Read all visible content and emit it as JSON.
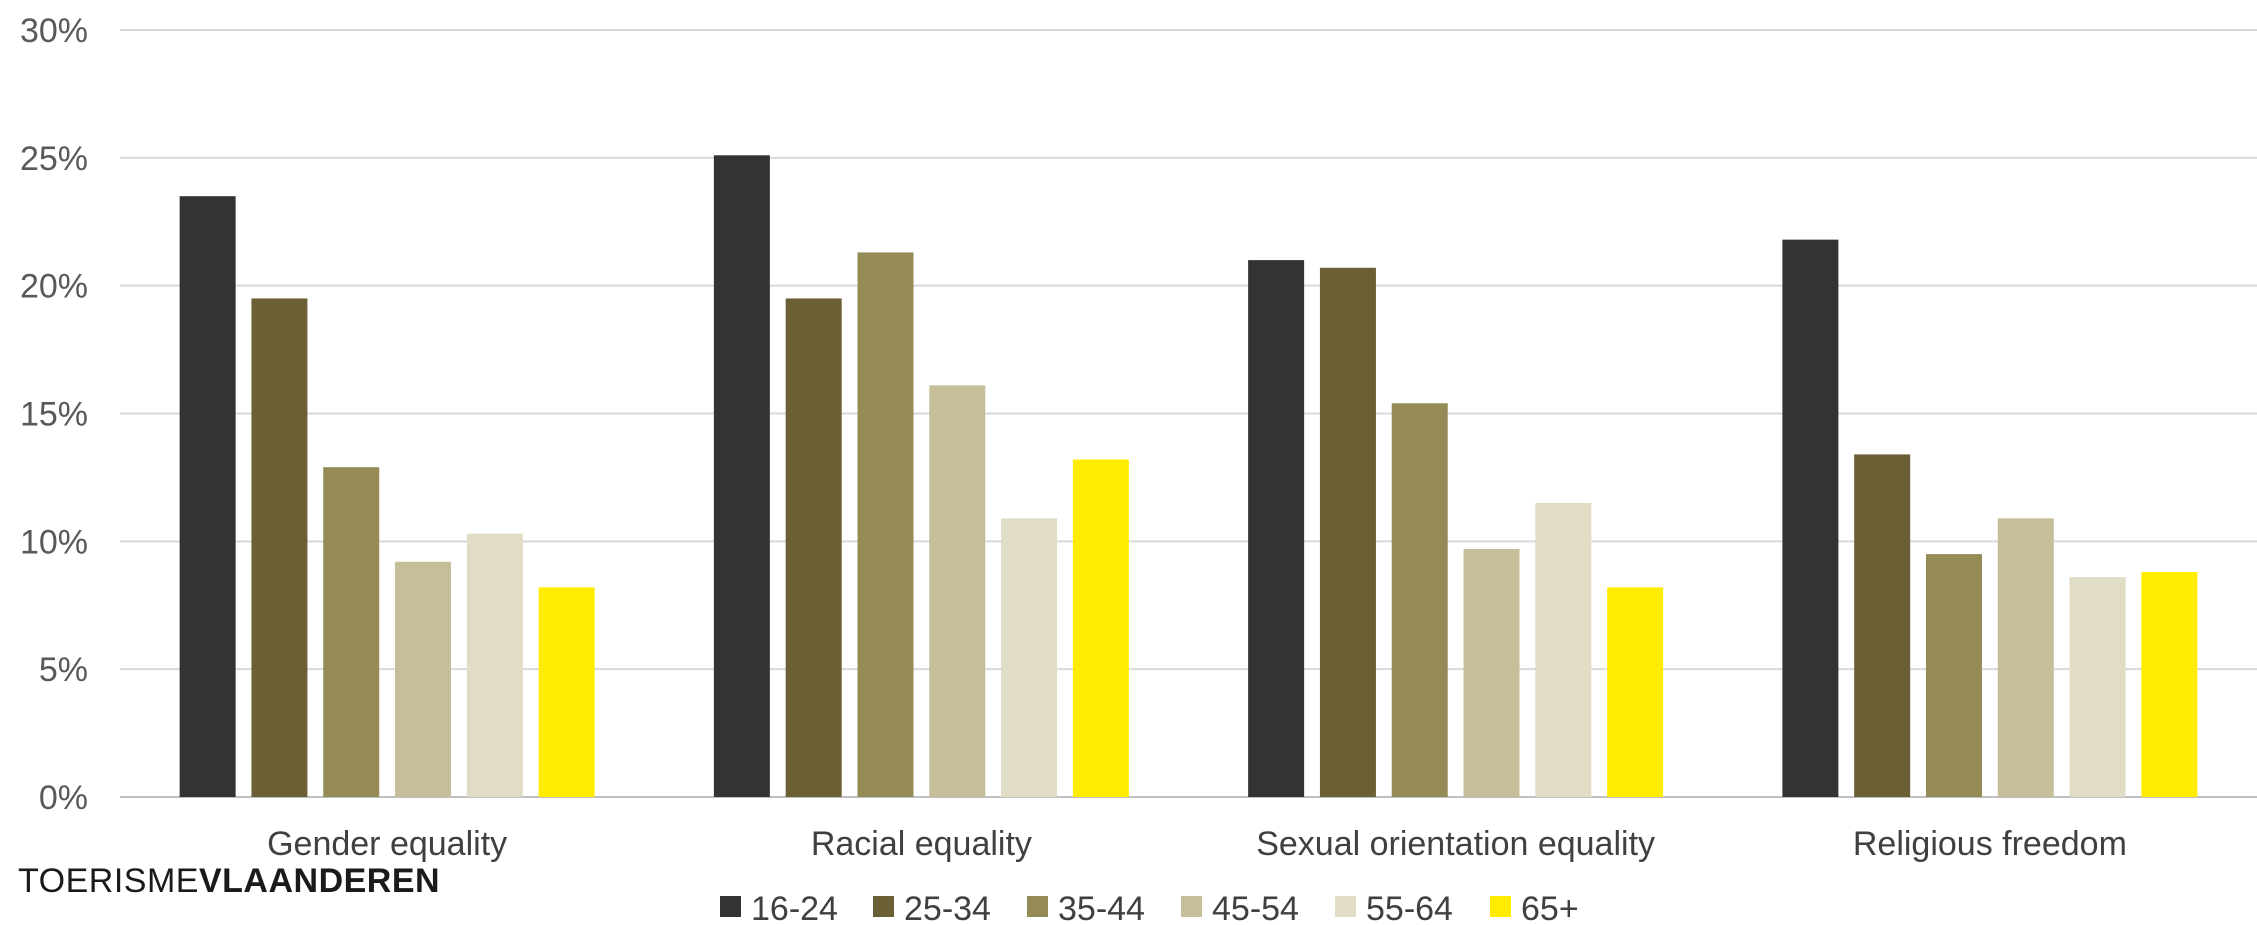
{
  "logo": {
    "part1": "TOERISME",
    "part2": "VLAANDEREN"
  },
  "chart_data": {
    "type": "bar",
    "categories": [
      "Gender equality",
      "Racial equality",
      "Sexual orientation equality",
      "Religious freedom"
    ],
    "series": [
      {
        "name": "16-24",
        "color": "#333333",
        "values": [
          23.5,
          25.1,
          21.0,
          21.8
        ]
      },
      {
        "name": "25-34",
        "color": "#6b5f35",
        "values": [
          19.5,
          19.5,
          20.7,
          13.4
        ]
      },
      {
        "name": "35-44",
        "color": "#958b56",
        "values": [
          12.9,
          21.3,
          15.4,
          9.5
        ]
      },
      {
        "name": "45-54",
        "color": "#c6be98",
        "values": [
          9.2,
          16.1,
          9.7,
          10.9
        ]
      },
      {
        "name": "55-64",
        "color": "#e0dcc5",
        "values": [
          10.3,
          10.9,
          11.5,
          8.6
        ]
      },
      {
        "name": "65+",
        "color": "#ffec00",
        "values": [
          8.2,
          13.2,
          8.2,
          8.8
        ]
      }
    ],
    "ylim": [
      0,
      30
    ],
    "yticks": [
      "0%",
      "5%",
      "10%",
      "15%",
      "20%",
      "25%",
      "30%"
    ],
    "ytick_values": [
      0,
      5,
      10,
      15,
      20,
      25,
      30
    ],
    "grid": true,
    "legend": "bottom"
  }
}
